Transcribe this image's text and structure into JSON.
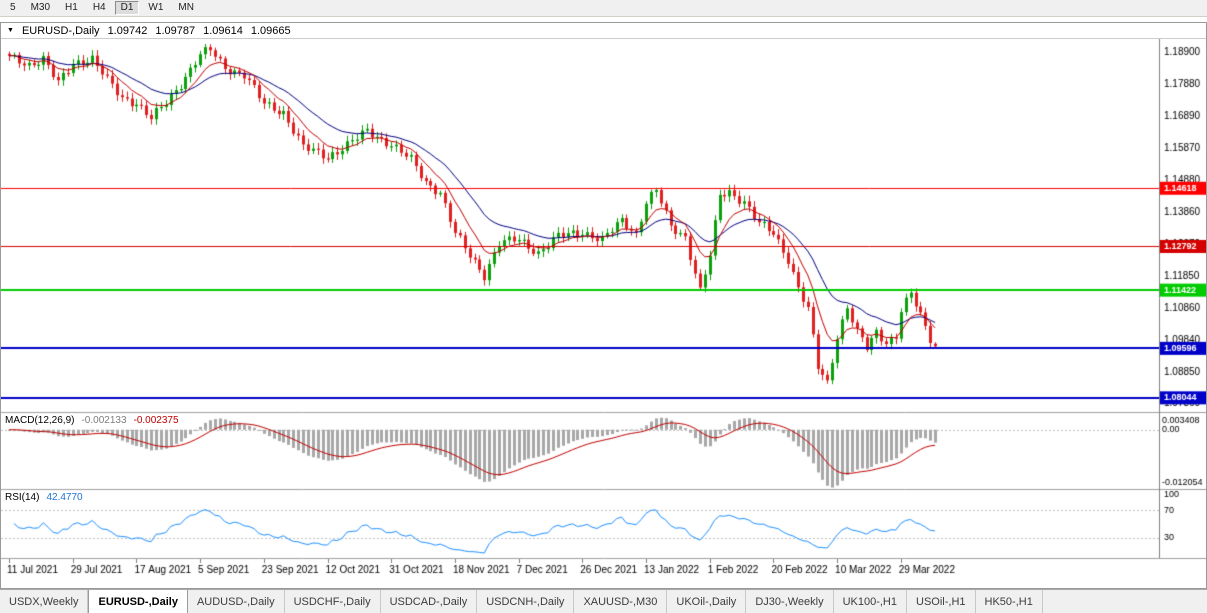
{
  "toolbar": {
    "timeframes": [
      "5",
      "M30",
      "H1",
      "H4",
      "D1",
      "W1",
      "MN"
    ],
    "active": "D1"
  },
  "chart": {
    "symbol": "EURUSD-,Daily",
    "ohlc": {
      "open": "1.09742",
      "high": "1.09787",
      "low": "1.09614",
      "close": "1.09665"
    },
    "price_axis_labels": [
      "1.18900",
      "1.17880",
      "1.16890",
      "1.15870",
      "1.14880",
      "1.13860",
      "1.12870",
      "1.11850",
      "1.10860",
      "1.09840",
      "1.08850",
      "1.07860"
    ],
    "hlines": [
      {
        "price": 1.14618,
        "label": "1.14618",
        "color": "#ff0000",
        "width": 1
      },
      {
        "price": 1.12792,
        "label": "1.12792",
        "color": "#d40000",
        "width": 1
      },
      {
        "price": 1.11422,
        "label": "1.11422",
        "color": "#00cc00",
        "width": 2
      },
      {
        "price": 1.09596,
        "label": "1.09596",
        "color": "#0000c8",
        "width": 2
      },
      {
        "price": 1.08044,
        "label": "1.08044",
        "color": "#0000c8",
        "width": 2
      }
    ],
    "colors": {
      "up": "#0ca00c",
      "down": "#e02020",
      "ma_slow": "#000080",
      "ma_fast": "#c00000",
      "macd_hist": "#a8a8a8",
      "macd_signal": "#c00000",
      "rsi": "#1e90ff",
      "grid_dash": "#c0c0c0"
    }
  },
  "indicators": {
    "macd": {
      "label": "MACD(12,26,9)",
      "value_main": "-0.002133",
      "value_signal": "-0.002375",
      "axis": {
        "max_label": "0.003408",
        "zero_label": "0.00",
        "min_label": "-0.012054",
        "max": 0.003408,
        "min": -0.012054
      }
    },
    "rsi": {
      "label": "RSI(14)",
      "value": "42.4770",
      "levels": [
        100,
        70,
        30
      ]
    }
  },
  "chart_data": {
    "type": "candlestick",
    "symbol": "EURUSD-",
    "timeframe": "Daily",
    "ylim": [
      1.076,
      1.193
    ],
    "x_labels": [
      "11 Jul 2021",
      "29 Jul 2021",
      "17 Aug 2021",
      "5 Sep 2021",
      "23 Sep 2021",
      "12 Oct 2021",
      "31 Oct 2021",
      "18 Nov 2021",
      "7 Dec 2021",
      "26 Dec 2021",
      "13 Jan 2022",
      "1 Feb 2022",
      "20 Feb 2022",
      "10 Mar 2022",
      "29 Mar 2022"
    ],
    "label_every_n_candles": 13,
    "closes": [
      1.1872,
      1.1867,
      1.1861,
      1.1856,
      1.185,
      1.1856,
      1.1862,
      1.1868,
      1.1842,
      1.1816,
      1.179,
      1.1812,
      1.1833,
      1.1855,
      1.1858,
      1.1861,
      1.1865,
      1.1868,
      1.1845,
      1.1823,
      1.18,
      1.1782,
      1.1763,
      1.1745,
      1.174,
      1.1735,
      1.173,
      1.1713,
      1.1697,
      1.168,
      1.1697,
      1.1713,
      1.173,
      1.175,
      1.177,
      1.179,
      1.1813,
      1.1835,
      1.1858,
      1.188,
      1.1888,
      1.1895,
      1.1877,
      1.1858,
      1.184,
      1.1835,
      1.1829,
      1.1824,
      1.1818,
      1.1795,
      1.1772,
      1.1748,
      1.1725,
      1.1719,
      1.1713,
      1.1706,
      1.17,
      1.1673,
      1.1645,
      1.1618,
      1.159,
      1.1584,
      1.1578,
      1.1572,
      1.1566,
      1.156,
      1.157,
      1.1579,
      1.1589,
      1.1598,
      1.1609,
      1.1619,
      1.163,
      1.164,
      1.1632,
      1.1624,
      1.1616,
      1.1608,
      1.16,
      1.1588,
      1.1575,
      1.1563,
      1.155,
      1.1527,
      1.1503,
      1.148,
      1.147,
      1.146,
      1.145,
      1.1407,
      1.1363,
      1.132,
      1.1297,
      1.1273,
      1.125,
      1.123,
      1.121,
      1.119,
      1.1223,
      1.1257,
      1.129,
      1.1293,
      1.1295,
      1.1298,
      1.13,
      1.129,
      1.128,
      1.127,
      1.126,
      1.1273,
      1.1285,
      1.1298,
      1.131,
      1.1313,
      1.1316,
      1.1319,
      1.1322,
      1.1325,
      1.1319,
      1.1313,
      1.1306,
      1.13,
      1.1315,
      1.133,
      1.1345,
      1.136,
      1.1347,
      1.1333,
      1.132,
      1.137,
      1.142,
      1.1438,
      1.1455,
      1.1417,
      1.1378,
      1.134,
      1.133,
      1.132,
      1.131,
      1.1253,
      1.1197,
      1.114,
      1.1195,
      1.125,
      1.1345,
      1.144,
      1.1445,
      1.145,
      1.144,
      1.143,
      1.142,
      1.1397,
      1.1373,
      1.135,
      1.134,
      1.133,
      1.132,
      1.1293,
      1.1267,
      1.124,
      1.1195,
      1.115,
      1.1115,
      1.108,
      1.099,
      1.09,
      1.0875,
      1.085,
      1.0925,
      1.1,
      1.1045,
      1.109,
      1.105,
      1.101,
      1.0985,
      1.096,
      1.0985,
      1.101,
      1.0995,
      1.098,
      1.099,
      1.1,
      1.108,
      1.1105,
      1.113,
      1.1095,
      1.106,
      1.1025,
      1.099,
      1.0966
    ],
    "last_candle": {
      "open": 1.09742,
      "high": 1.09787,
      "low": 1.09614,
      "close": 1.09665
    }
  },
  "tabs": {
    "active_index": 1,
    "items": [
      "USDX,Weekly",
      "EURUSD-,Daily",
      "AUDUSD-,Daily",
      "USDCHF-,Daily",
      "USDCAD-,Daily",
      "USDCNH-,Daily",
      "XAUUSD-,M30",
      "UKOil-,Daily",
      "DJ30-,Weekly",
      "UK100-,H1",
      "USOil-,H1",
      "HK50-,H1"
    ]
  }
}
